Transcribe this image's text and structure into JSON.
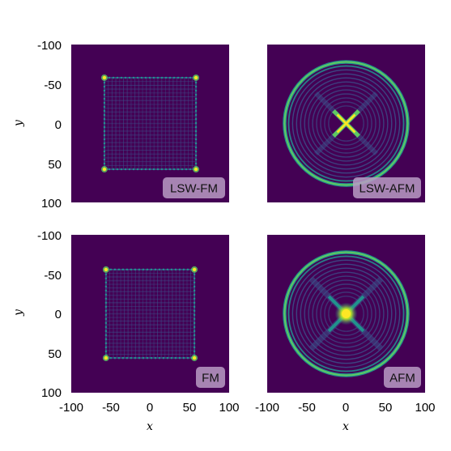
{
  "chart_data": {
    "type": "heatmap",
    "xlim": [
      -100,
      100
    ],
    "ylim": [
      -100,
      100
    ],
    "y_inverted": true,
    "colormap": "viridis",
    "colors": {
      "background": "#440154",
      "low": "#3b528b",
      "mid": "#21918c",
      "high": "#5ec962",
      "peak": "#fde725",
      "tag_background": "#b89bc4"
    },
    "x_axis": {
      "label": "x",
      "ticks": [
        "-100",
        "-50",
        "0",
        "50",
        "100"
      ]
    },
    "y_axis": {
      "label": "y",
      "ticks": [
        "-100",
        "-50",
        "0",
        "50",
        "100"
      ]
    },
    "panels": [
      {
        "tag": "LSW-FM",
        "pattern": "square-grid",
        "half_width": 58
      },
      {
        "tag": "LSW-AFM",
        "pattern": "concentric-rings",
        "outer_ring_radius": 78,
        "center_feature": "X-shaped cross"
      },
      {
        "tag": "FM",
        "pattern": "square-grid",
        "half_width": 56
      },
      {
        "tag": "AFM",
        "pattern": "concentric-rings",
        "outer_ring_radius": 78,
        "center_feature": "bright spot"
      }
    ]
  }
}
